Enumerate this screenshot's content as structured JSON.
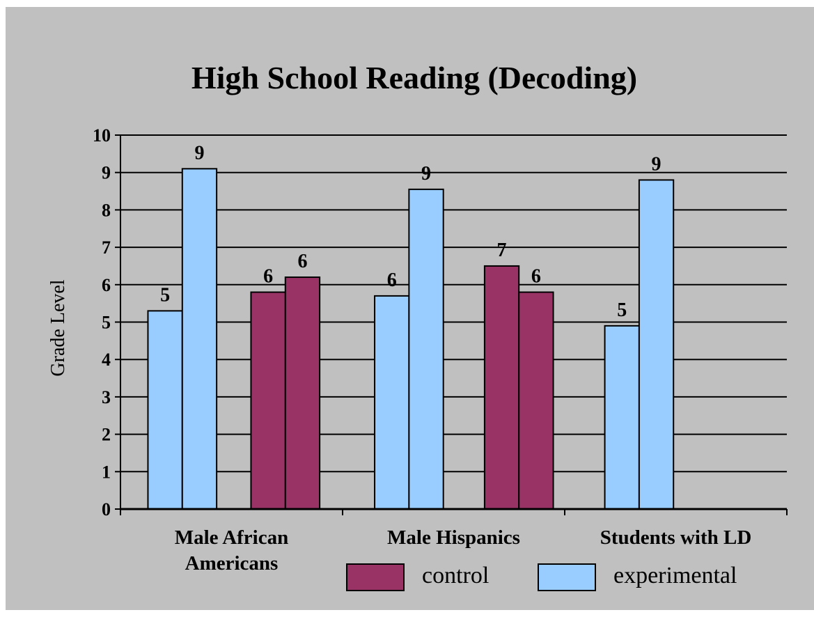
{
  "chart_data": {
    "type": "bar",
    "title": "High School Reading (Decoding)",
    "ylabel": "Grade Level",
    "xlabel": "",
    "ylim": [
      0,
      10
    ],
    "yticks": [
      0,
      1,
      2,
      3,
      4,
      5,
      6,
      7,
      8,
      9,
      10
    ],
    "grid": true,
    "legend_position": "bottom-right",
    "categories": [
      {
        "line1": "Male African",
        "line2": "Americans"
      },
      {
        "line1": "Male Hispanics",
        "line2": ""
      },
      {
        "line1": "Students with LD",
        "line2": ""
      }
    ],
    "legend": [
      {
        "series": "control",
        "label": "control",
        "color": "#993366"
      },
      {
        "series": "experimental",
        "label": "experimental",
        "color": "#99ccff"
      }
    ],
    "bars": [
      {
        "category": 0,
        "series": "experimental",
        "value": 5.3,
        "label": "5"
      },
      {
        "category": 0,
        "series": "experimental",
        "value": 9.1,
        "label": "9"
      },
      {
        "category": 0,
        "series": "control",
        "value": 5.8,
        "label": "6"
      },
      {
        "category": 0,
        "series": "control",
        "value": 6.2,
        "label": "6"
      },
      {
        "category": 1,
        "series": "experimental",
        "value": 5.7,
        "label": "6"
      },
      {
        "category": 1,
        "series": "experimental",
        "value": 8.55,
        "label": "9"
      },
      {
        "category": 1,
        "series": "control",
        "value": 6.5,
        "label": "7"
      },
      {
        "category": 1,
        "series": "control",
        "value": 5.8,
        "label": "6"
      },
      {
        "category": 2,
        "series": "experimental",
        "value": 4.9,
        "label": "5"
      },
      {
        "category": 2,
        "series": "experimental",
        "value": 8.8,
        "label": "9"
      }
    ]
  }
}
